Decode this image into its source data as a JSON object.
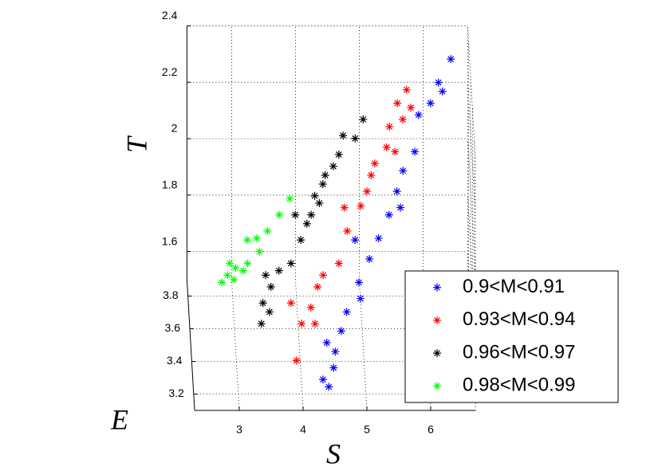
{
  "chart_data": {
    "type": "scatter3d",
    "xlabel": "S",
    "ylabel": "E",
    "zlabel": "T",
    "xlim": [
      2.3,
      6.7
    ],
    "ylim": [
      3.1,
      3.9
    ],
    "zlim": [
      1.5,
      2.4
    ],
    "xticks": [
      3,
      4,
      5,
      6
    ],
    "yticks": [
      3.2,
      3.4,
      3.6,
      3.8
    ],
    "zticks": [
      1.6,
      1.8,
      2,
      2.2,
      2.4
    ],
    "grid": true,
    "legend": "lower right",
    "series": [
      {
        "name": "0.9<M<0.91",
        "color": "#0000ff",
        "x": [
          6.42,
          6.22,
          6.28,
          6.09,
          5.9,
          5.83,
          5.64,
          5.54,
          5.59,
          5.41,
          5.24,
          5.09,
          4.92,
          4.94,
          4.72,
          4.63,
          4.4,
          4.53,
          4.5,
          4.33,
          4.42,
          4.87
        ],
        "y": [
          3.8,
          3.76,
          3.74,
          3.72,
          3.7,
          3.63,
          3.6,
          3.56,
          3.53,
          3.52,
          3.48,
          3.44,
          3.4,
          3.37,
          3.34,
          3.31,
          3.29,
          3.27,
          3.24,
          3.22,
          3.21,
          3.47
        ],
        "z": [
          2.34,
          2.28,
          2.26,
          2.23,
          2.2,
          2.11,
          2.06,
          2.01,
          1.97,
          1.95,
          1.89,
          1.84,
          1.78,
          1.74,
          1.71,
          1.66,
          1.63,
          1.61,
          1.57,
          1.54,
          1.52,
          1.89
        ]
      },
      {
        "name": "0.93<M<0.94",
        "color": "#ff0000",
        "x": [
          5.72,
          5.78,
          5.57,
          5.65,
          5.44,
          5.39,
          5.52,
          5.2,
          5.14,
          5.07,
          4.97,
          4.75,
          4.61,
          4.36,
          4.27,
          4.16,
          3.85,
          4.22,
          4.01,
          3.92,
          4.71
        ],
        "y": [
          3.75,
          3.71,
          3.72,
          3.69,
          3.68,
          3.64,
          3.63,
          3.61,
          3.59,
          3.56,
          3.54,
          3.49,
          3.43,
          3.41,
          3.39,
          3.35,
          3.36,
          3.32,
          3.32,
          3.25,
          3.53
        ],
        "z": [
          2.26,
          2.22,
          2.23,
          2.19,
          2.17,
          2.12,
          2.11,
          2.08,
          2.05,
          2.01,
          1.97,
          1.91,
          1.83,
          1.8,
          1.77,
          1.72,
          1.73,
          1.68,
          1.68,
          1.59,
          1.97
        ]
      },
      {
        "name": "0.96<M<0.97",
        "color": "#000000",
        "x": [
          5.03,
          4.9,
          4.71,
          4.64,
          4.55,
          4.42,
          4.38,
          4.25,
          4.32,
          4.19,
          3.94,
          4.02,
          3.86,
          3.67,
          3.46,
          3.54,
          3.41,
          3.51,
          3.38,
          4.12
        ],
        "y": [
          3.69,
          3.66,
          3.66,
          3.63,
          3.61,
          3.59,
          3.57,
          3.55,
          3.54,
          3.52,
          3.52,
          3.47,
          3.43,
          3.42,
          3.41,
          3.39,
          3.36,
          3.34,
          3.32,
          3.5
        ],
        "z": [
          2.19,
          2.14,
          2.15,
          2.1,
          2.07,
          2.05,
          2.03,
          2.0,
          1.98,
          1.95,
          1.95,
          1.89,
          1.83,
          1.81,
          1.8,
          1.77,
          1.73,
          1.71,
          1.68,
          1.93
        ]
      },
      {
        "name": "0.98<M<0.99",
        "color": "#00ff00",
        "x": [
          3.86,
          3.69,
          3.5,
          3.33,
          3.18,
          3.37,
          3.18,
          2.99,
          2.9,
          3.11,
          2.86,
          2.77,
          2.96
        ],
        "y": [
          3.55,
          3.52,
          3.49,
          3.48,
          3.47,
          3.45,
          3.43,
          3.42,
          3.43,
          3.42,
          3.41,
          3.4,
          3.4
        ],
        "z": [
          1.99,
          1.95,
          1.91,
          1.89,
          1.89,
          1.86,
          1.83,
          1.82,
          1.83,
          1.81,
          1.8,
          1.78,
          1.79
        ]
      }
    ]
  }
}
